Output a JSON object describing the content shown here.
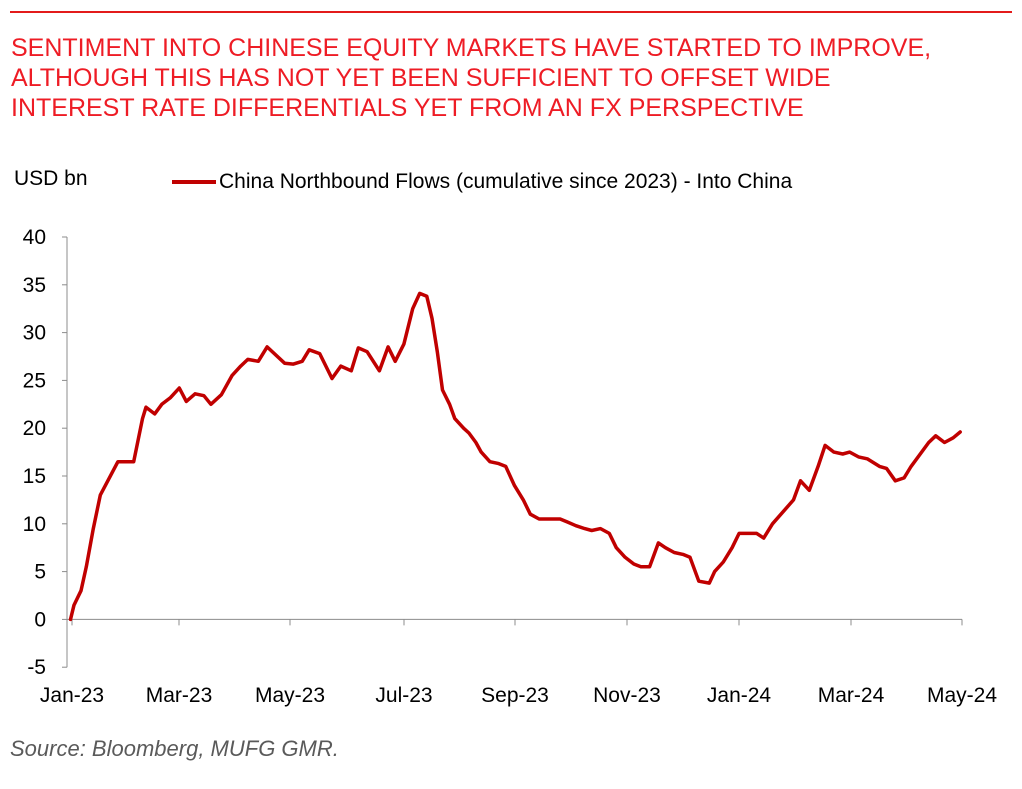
{
  "header": {
    "title_lines": [
      "SENTIMENT INTO CHINESE EQUITY MARKETS HAVE STARTED TO IMPROVE,",
      "ALTHOUGH THIS HAS NOT YET BEEN SUFFICIENT TO OFFSET WIDE",
      "INTEREST RATE DIFFERENTIALS YET FROM AN FX PERSPECTIVE"
    ]
  },
  "footer": {
    "source": "Source: Bloomberg, MUFG GMR."
  },
  "colors": {
    "title": "#ee1c25",
    "series": "#c00000",
    "rule": "#e31b1b"
  },
  "chart_data": {
    "type": "line",
    "ylabel": "USD bn",
    "ylim": [
      -5,
      40
    ],
    "yticks": [
      "40",
      "35",
      "30",
      "25",
      "20",
      "15",
      "10",
      "5",
      "0",
      "-5"
    ],
    "yticks_values": [
      40,
      35,
      30,
      25,
      20,
      15,
      10,
      5,
      0,
      -5
    ],
    "xticks": [
      "Jan-23",
      "Mar-23",
      "May-23",
      "Jul-23",
      "Sep-23",
      "Nov-23",
      "Jan-24",
      "Mar-24",
      "May-24"
    ],
    "grid": false,
    "legend_position": "top",
    "series": [
      {
        "name": "China Northbound Flows (cumulative since 2023) - Into China",
        "x": [
          "2023-01-03",
          "2023-01-05",
          "2023-01-09",
          "2023-01-12",
          "2023-01-16",
          "2023-01-20",
          "2023-01-30",
          "2023-02-03",
          "2023-02-08",
          "2023-02-13",
          "2023-02-15",
          "2023-02-20",
          "2023-02-24",
          "2023-03-01",
          "2023-03-06",
          "2023-03-10",
          "2023-03-15",
          "2023-03-20",
          "2023-03-24",
          "2023-03-30",
          "2023-04-05",
          "2023-04-10",
          "2023-04-14",
          "2023-04-20",
          "2023-04-25",
          "2023-05-05",
          "2023-05-10",
          "2023-05-15",
          "2023-05-19",
          "2023-05-25",
          "2023-06-01",
          "2023-06-06",
          "2023-06-12",
          "2023-06-16",
          "2023-06-21",
          "2023-06-28",
          "2023-07-03",
          "2023-07-07",
          "2023-07-12",
          "2023-07-17",
          "2023-07-21",
          "2023-07-25",
          "2023-07-28",
          "2023-07-31",
          "2023-08-03",
          "2023-08-07",
          "2023-08-10",
          "2023-08-15",
          "2023-08-18",
          "2023-08-22",
          "2023-08-25",
          "2023-08-30",
          "2023-09-04",
          "2023-09-08",
          "2023-09-13",
          "2023-09-18",
          "2023-09-22",
          "2023-09-27",
          "2023-10-09",
          "2023-10-13",
          "2023-10-18",
          "2023-10-23",
          "2023-10-27",
          "2023-11-01",
          "2023-11-06",
          "2023-11-10",
          "2023-11-15",
          "2023-11-20",
          "2023-11-24",
          "2023-11-29",
          "2023-12-04",
          "2023-12-08",
          "2023-12-13",
          "2023-12-18",
          "2023-12-22",
          "2023-12-27",
          "2024-01-02",
          "2024-01-05",
          "2024-01-10",
          "2024-01-15",
          "2024-01-19",
          "2024-01-24",
          "2024-01-29",
          "2024-02-02",
          "2024-02-07",
          "2024-02-19",
          "2024-02-23",
          "2024-02-28",
          "2024-03-04",
          "2024-03-08",
          "2024-03-13",
          "2024-03-18",
          "2024-03-22",
          "2024-03-27",
          "2024-04-01",
          "2024-04-08",
          "2024-04-12",
          "2024-04-17",
          "2024-04-22",
          "2024-04-26",
          "2024-05-06",
          "2024-05-10",
          "2024-05-15",
          "2024-05-20",
          "2024-05-24"
        ],
        "values": [
          0,
          1.5,
          3.0,
          5.5,
          9.5,
          13,
          16.5,
          16.5,
          16.5,
          21,
          22.2,
          21.5,
          22.5,
          23.2,
          24.2,
          22.8,
          23.6,
          23.4,
          22.5,
          23.5,
          25.5,
          26.5,
          27.2,
          27.0,
          28.5,
          26.8,
          26.7,
          27.0,
          28.2,
          27.8,
          25.2,
          26.5,
          26.0,
          28.4,
          28.0,
          26.0,
          28.5,
          27.0,
          28.8,
          32.5,
          34.1,
          33.8,
          31.5,
          28.0,
          24.0,
          22.5,
          21.0,
          20.0,
          19.5,
          18.5,
          17.5,
          16.5,
          16.3,
          16.0,
          14.0,
          12.5,
          11.0,
          10.5,
          10.5,
          10.2,
          9.8,
          9.5,
          9.3,
          9.5,
          9.0,
          7.5,
          6.5,
          5.8,
          5.5,
          5.5,
          8.0,
          7.5,
          7.0,
          6.8,
          6.5,
          4.0,
          3.8,
          5.0,
          6.0,
          7.5,
          9.0,
          9.0,
          9.0,
          8.5,
          10.0,
          12.5,
          14.5,
          13.5,
          16.0,
          18.2,
          17.5,
          17.3,
          17.5,
          17.0,
          16.8,
          16.0,
          15.8,
          14.5,
          14.8,
          16.0,
          18.5,
          19.2,
          18.5,
          19.0,
          19.6
        ]
      }
    ]
  }
}
